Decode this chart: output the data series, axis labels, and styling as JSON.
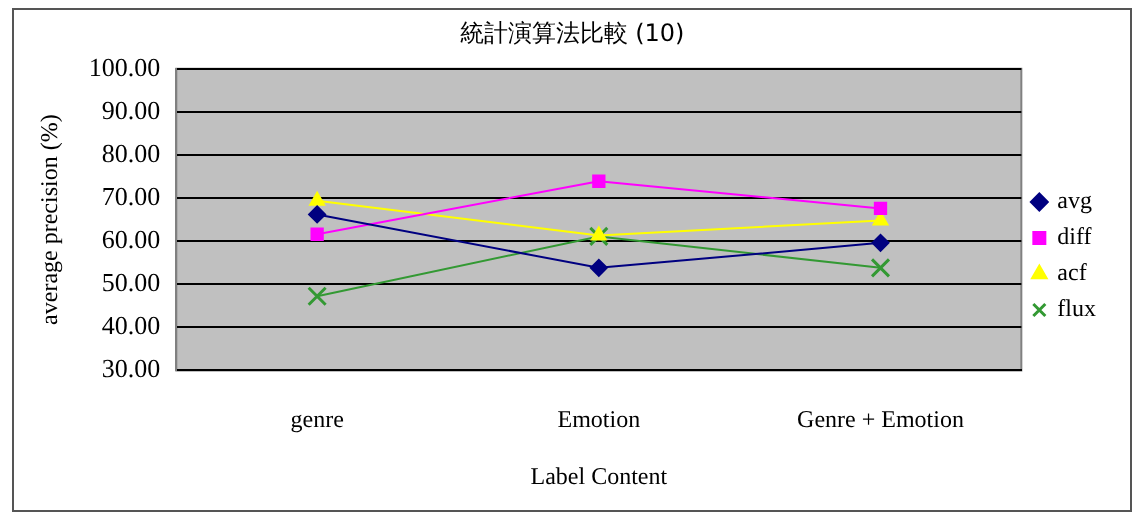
{
  "chart_data": {
    "type": "line",
    "title": "統計演算法比較 (10)",
    "xlabel": "Label Content",
    "ylabel": "average precision (%)",
    "categories": [
      "genre",
      "Emotion",
      "Genre + Emotion"
    ],
    "series": [
      {
        "name": "avg",
        "color": "#000080",
        "marker": "diamond",
        "values": [
          66.2,
          53.8,
          59.6
        ]
      },
      {
        "name": "diff",
        "color": "#ff00ff",
        "marker": "square",
        "values": [
          61.6,
          73.9,
          67.6
        ]
      },
      {
        "name": "acf",
        "color": "#ffff00",
        "marker": "triangle",
        "values": [
          69.4,
          61.3,
          64.8
        ]
      },
      {
        "name": "flux",
        "color": "#339933",
        "marker": "cross",
        "values": [
          47.2,
          61.1,
          53.8
        ]
      }
    ],
    "ylim": [
      30,
      100
    ],
    "yticks": [
      {
        "value": 30,
        "label": "30.00"
      },
      {
        "value": 40,
        "label": "40.00"
      },
      {
        "value": 50,
        "label": "50.00"
      },
      {
        "value": 60,
        "label": "60.00"
      },
      {
        "value": 70,
        "label": "70.00"
      },
      {
        "value": 80,
        "label": "80.00"
      },
      {
        "value": 90,
        "label": "90.00"
      },
      {
        "value": 100,
        "label": "100.00"
      }
    ],
    "grid": "y",
    "legend": "right"
  }
}
